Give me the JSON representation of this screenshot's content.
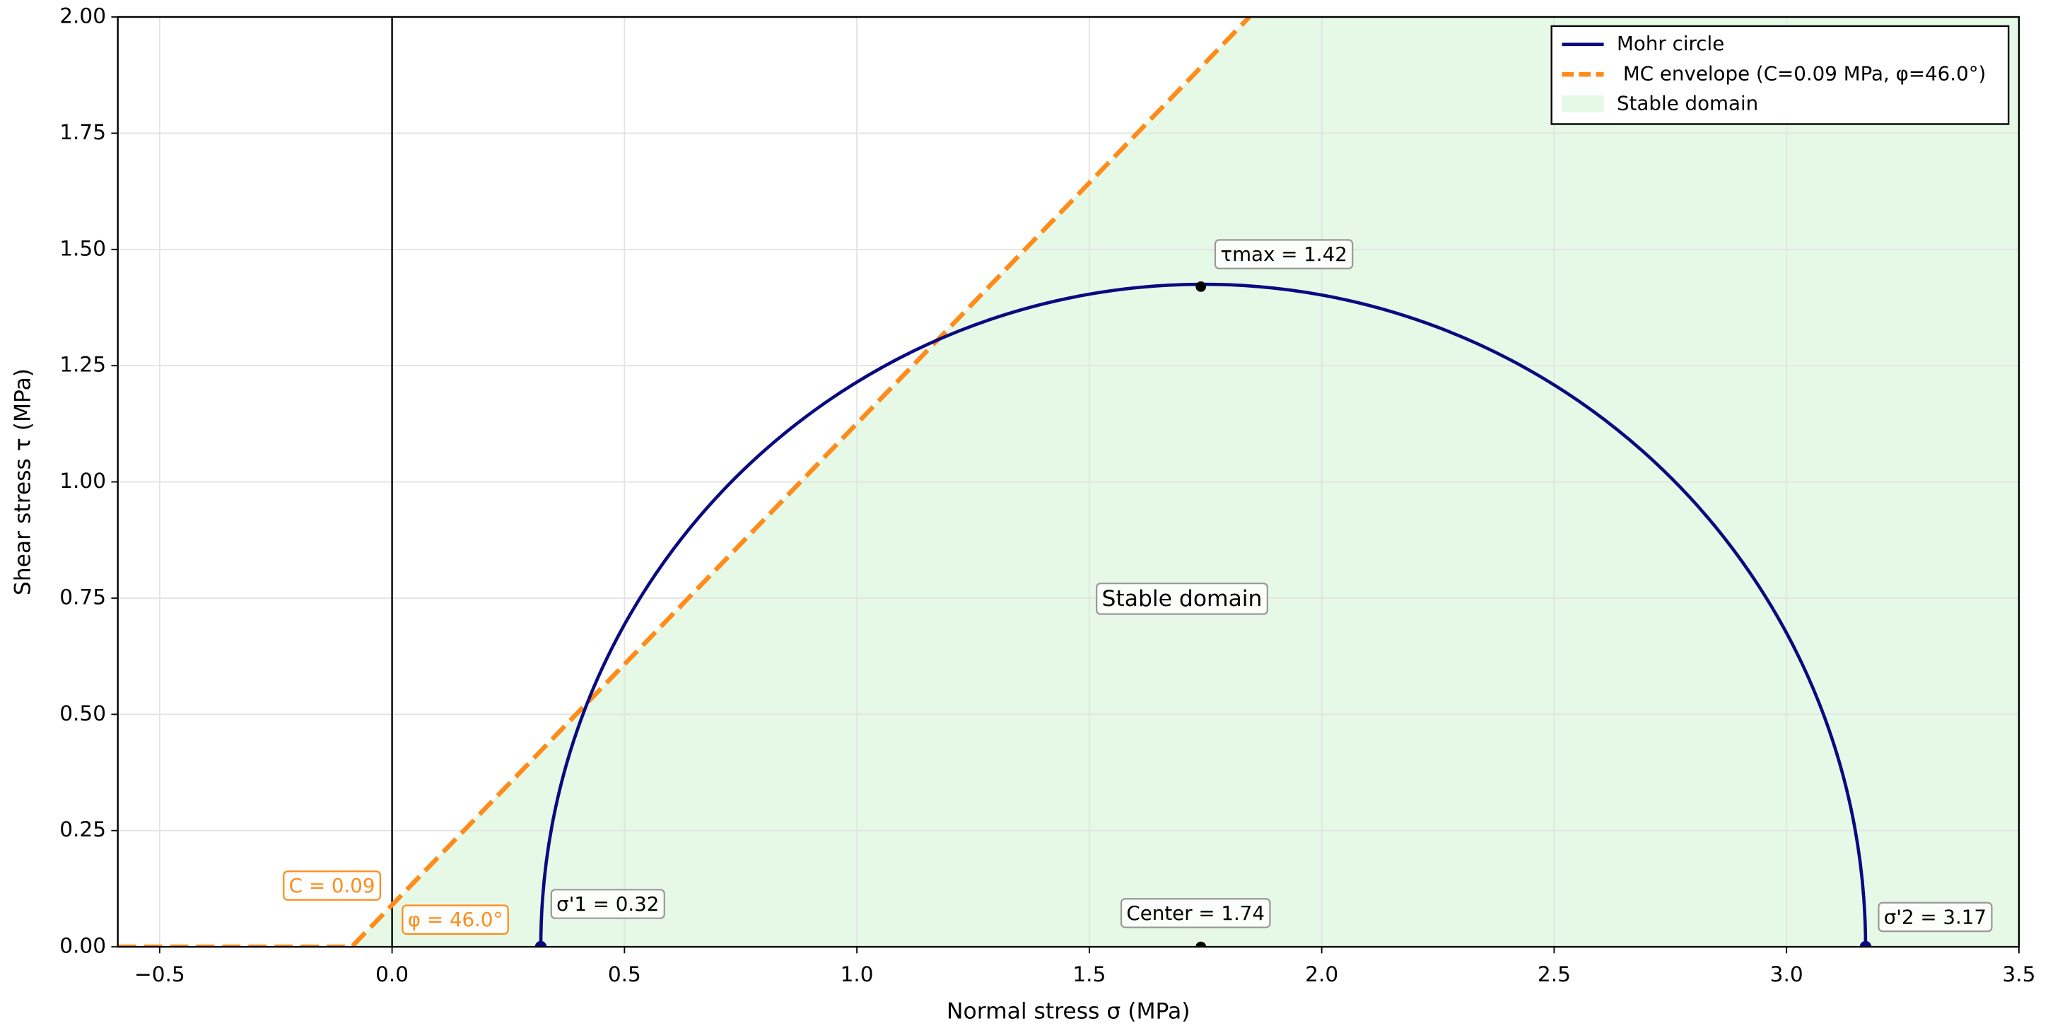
{
  "chart_data": {
    "type": "mohr",
    "x_label": "Normal stress σ (MPa)",
    "y_label": "Shear stress τ (MPa)",
    "xlim": [
      -0.59,
      3.5
    ],
    "ylim": [
      0,
      2
    ],
    "xticks": [
      {
        "value": -0.5,
        "label": "−0.5"
      },
      {
        "value": 0,
        "label": "0.0"
      },
      0.5,
      {
        "value": 1,
        "label": "1.0"
      },
      1.5,
      {
        "value": 2,
        "label": "2.0"
      },
      2.5,
      {
        "value": 3,
        "label": "3.0"
      },
      3.5
    ],
    "yticks": [
      {
        "value": 0,
        "label": "0.00"
      },
      0.25,
      {
        "value": 0.5,
        "label": "0.50"
      },
      0.75,
      {
        "value": 1,
        "label": "1.00"
      },
      1.25,
      {
        "value": 1.5,
        "label": "1.50"
      },
      1.75,
      {
        "value": 2,
        "label": "2.00"
      }
    ],
    "grid": true,
    "vline_x": 0,
    "legend": "upper right",
    "mohr_circle": {
      "name": "Mohr circle",
      "color": "#0a0a80",
      "sigma1": {
        "value": 0.32,
        "label": "σ'1 = 0.32"
      },
      "sigma2": {
        "value": 3.17,
        "label": "σ'2 = 3.17"
      },
      "center": {
        "value": 1.74,
        "label": "Center = 1.74"
      },
      "tau_max": {
        "value": 1.42,
        "label": "τmax = 1.42"
      }
    },
    "envelope": {
      "name": " MC envelope (C=0.09 MPa, φ=46.0°)",
      "color": "#ff8c1a",
      "cohesion": {
        "value": 0.09,
        "label": "C = 0.09"
      },
      "friction_angle": {
        "value": 46.0,
        "label": "φ = 46.0°"
      }
    },
    "stable_domain": {
      "name": "Stable domain",
      "label": "Stable domain",
      "color": "#e6f9e6"
    }
  }
}
